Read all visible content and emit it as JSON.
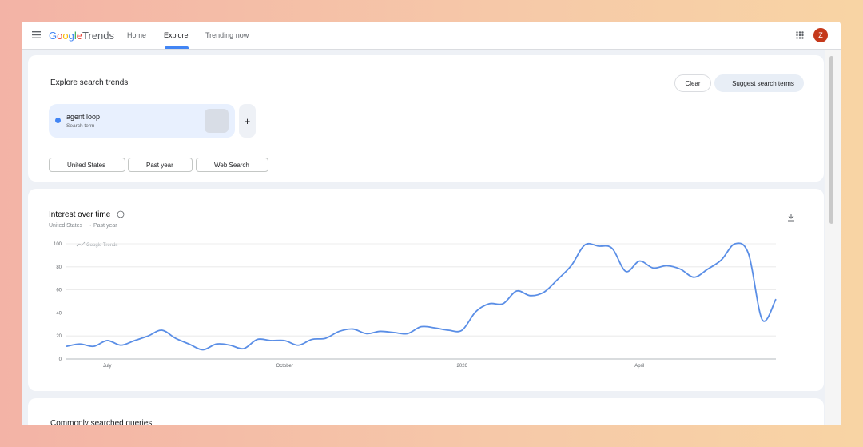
{
  "header": {
    "logo_google": "Google",
    "logo_trends": "Trends",
    "nav": [
      "Home",
      "Explore",
      "Trending now"
    ],
    "avatar": "Z"
  },
  "explore": {
    "title": "Explore search trends",
    "clear": "Clear",
    "suggest": "Suggest search terms",
    "term": "agent loop",
    "term_sub": "Search term",
    "add": "+",
    "filters": [
      "United States",
      "Past year",
      "Web Search"
    ]
  },
  "chart_data": {
    "type": "line",
    "title": "Interest over time",
    "subtitle": [
      "United States",
      "Past year"
    ],
    "watermark": "Google Trends",
    "color": "#5a8ee6",
    "categories": [
      null,
      null,
      null,
      "July",
      null,
      null,
      null,
      null,
      null,
      null,
      null,
      null,
      null,
      null,
      null,
      null,
      "October",
      null,
      null,
      null,
      null,
      null,
      null,
      null,
      null,
      null,
      null,
      null,
      null,
      "2026",
      null,
      null,
      null,
      null,
      null,
      null,
      null,
      null,
      null,
      null,
      null,
      null,
      "April",
      null,
      null,
      null,
      null,
      null,
      null,
      null,
      null,
      null,
      null
    ],
    "values": [
      11,
      13,
      11,
      16,
      12,
      16,
      20,
      25,
      18,
      13,
      8,
      13,
      12,
      9,
      17,
      16,
      16,
      12,
      17,
      18,
      24,
      26,
      22,
      24,
      23,
      22,
      28,
      27,
      25,
      25,
      41,
      48,
      48,
      59,
      55,
      58,
      69,
      81,
      99,
      98,
      96,
      76,
      85,
      79,
      81,
      78,
      71,
      78,
      86,
      100,
      91,
      34,
      52
    ],
    "ylim": [
      0,
      100
    ],
    "yticks": [
      0,
      20,
      40,
      60,
      80,
      100
    ],
    "grid": true
  },
  "next_section": "Commonly searched queries"
}
